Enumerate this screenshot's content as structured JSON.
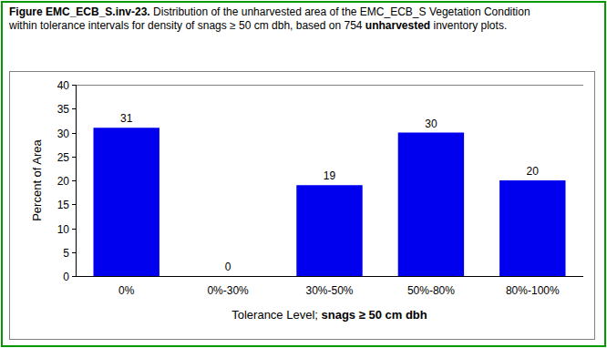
{
  "chart_data": {
    "type": "bar",
    "title": [
      "Figure EMC_ECB_S.inv-23.",
      " Distribution of the unharvested area of the EMC_ECB_S Vegetation Condition within tolerance intervals for density of snags ≥ 50 cm dbh, based on 754 ",
      "unharvested",
      " inventory plots."
    ],
    "xlabel": [
      "Tolerance Level; ",
      "snags ≥ 50 cm dbh"
    ],
    "ylabel": "Percent of Area",
    "categories": [
      "0%",
      "0%-30%",
      "30%-50%",
      "50%-80%",
      "80%-100%"
    ],
    "values": [
      31,
      0,
      19,
      30,
      20
    ],
    "color": "#0000ee",
    "ylim": [
      0,
      40
    ],
    "yticks": [
      0,
      5,
      10,
      15,
      20,
      25,
      30,
      35,
      40
    ],
    "data_labels": true
  }
}
